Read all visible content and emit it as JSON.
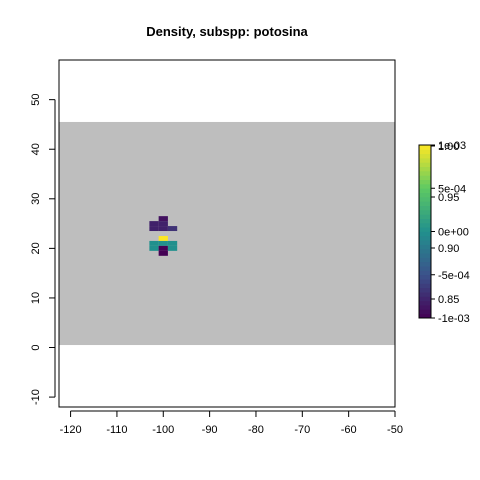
{
  "chart_data": {
    "type": "heatmap",
    "title": "Density, subspp: potosina",
    "xlabel": "",
    "ylabel": "",
    "xlim": [
      -122.5,
      -50
    ],
    "ylim": [
      -12,
      58
    ],
    "x_ticks": [
      -120,
      -110,
      -100,
      -90,
      -80,
      -70,
      -60,
      -50
    ],
    "y_ticks": [
      -10,
      0,
      10,
      20,
      30,
      40,
      50
    ],
    "background_band": {
      "x": [
        -122.5,
        -50
      ],
      "y": [
        0.5,
        45.5
      ],
      "color": "#bebebe"
    },
    "cell_width": 2,
    "cell_height": 1,
    "cells": [
      {
        "x": -100,
        "y": 26,
        "value": 0.81
      },
      {
        "x": -102,
        "y": 25,
        "value": 0.82
      },
      {
        "x": -100,
        "y": 25,
        "value": 0.82
      },
      {
        "x": -98,
        "y": 24,
        "value": 0.83
      },
      {
        "x": -102,
        "y": 24,
        "value": 0.82
      },
      {
        "x": -100,
        "y": 24,
        "value": 0.82
      },
      {
        "x": -100,
        "y": 22,
        "value": 1.0
      },
      {
        "x": -102,
        "y": 21,
        "value": 0.9
      },
      {
        "x": -100,
        "y": 21,
        "value": 0.9
      },
      {
        "x": -98,
        "y": 21,
        "value": 0.9
      },
      {
        "x": -102,
        "y": 20,
        "value": 0.9
      },
      {
        "x": -100,
        "y": 20,
        "value": 0.78
      },
      {
        "x": -98,
        "y": 20,
        "value": 0.9
      },
      {
        "x": -100,
        "y": 19,
        "value": 0.78
      }
    ],
    "colorbar": {
      "palette": [
        "#440154",
        "#3b528b",
        "#21908d",
        "#5dc963",
        "#fde725"
      ],
      "labels_a": [
        "1e-03",
        "5e-04",
        "0e+00",
        "-5e-04",
        "-1e-03"
      ],
      "labels_b": [
        "1.00",
        "0.95",
        "0.90",
        "0.85"
      ]
    },
    "grid": false,
    "legend_position": "right"
  }
}
